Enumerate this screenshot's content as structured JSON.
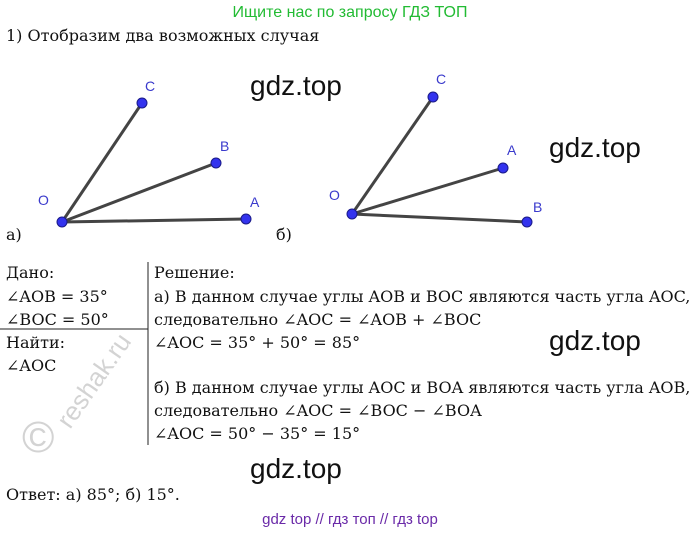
{
  "header": {
    "banner": "Ищите нас по запросу ГДЗ ТОП",
    "task": "1) Отобразим два возможных случая"
  },
  "figures": [
    {
      "caption": "а)",
      "points": {
        "C": "C",
        "B": "B",
        "A": "A",
        "O": "O"
      }
    },
    {
      "caption": "б)",
      "points": {
        "C": "C",
        "A": "A",
        "B": "B",
        "O": "O"
      }
    }
  ],
  "given": {
    "title": "Дано:",
    "lines": [
      "∠AOB = 35°",
      "∠BOC = 50°"
    ]
  },
  "find": {
    "title": "Найти:",
    "lines": [
      "∠AOC"
    ]
  },
  "solution": {
    "title": "Решение:",
    "lines": [
      "а) В данном случае углы AOB и BOC являются часть угла AOC,",
      "следовательно ∠AOC = ∠AOB + ∠BOC",
      "∠AOC = 35° + 50° = 85°",
      "б) В данном случае углы AOC и BOA являются часть угла AOB,",
      "следовательно ∠AOC = ∠BOC − ∠BOA",
      "∠AOC = 50° − 35° = 15°"
    ]
  },
  "answer": "Ответ: а) 85°; б) 15°.",
  "watermarks": [
    "gdz.top",
    "gdz.top",
    "gdz.top",
    "gdz.top"
  ],
  "reshak": {
    "text": "reshak.ru",
    "mark": "©"
  },
  "footer": "gdz top  //  гдз топ  //  гдз top"
}
